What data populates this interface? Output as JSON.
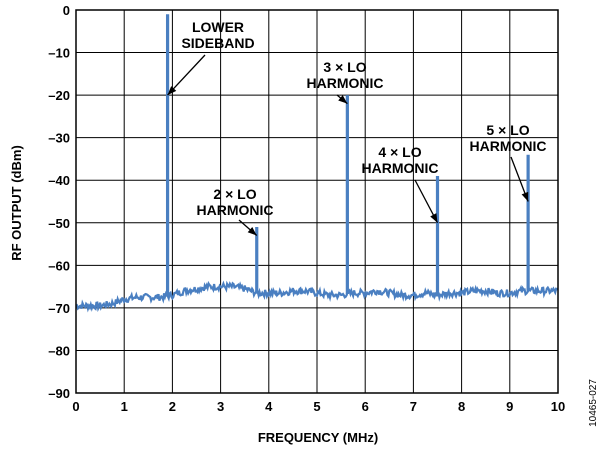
{
  "chart_data": {
    "type": "line",
    "xlabel": "FREQUENCY (MHz)",
    "ylabel": "RF OUTPUT (dBm)",
    "xlim": [
      0,
      10
    ],
    "ylim": [
      -90,
      0
    ],
    "x_ticks": [
      "0",
      "1",
      "2",
      "3",
      "4",
      "5",
      "6",
      "7",
      "8",
      "9",
      "10"
    ],
    "y_ticks": [
      "0",
      "–10",
      "–20",
      "–30",
      "–40",
      "–50",
      "–60",
      "–70",
      "–80",
      "–90"
    ],
    "grid": true,
    "line_color": "#4a7fc1",
    "noise_floor": {
      "x": [
        0,
        0.25,
        0.5,
        0.75,
        1.0,
        1.25,
        1.5,
        1.75,
        2.0,
        2.25,
        2.5,
        2.75,
        3.0,
        3.25,
        3.5,
        3.75,
        4.0,
        4.25,
        4.5,
        4.75,
        5.0,
        5.25,
        5.5,
        5.75,
        6.0,
        6.25,
        6.5,
        6.75,
        7.0,
        7.25,
        7.5,
        7.75,
        8.0,
        8.25,
        8.5,
        8.75,
        9.0,
        9.25,
        9.5,
        9.75,
        10.0
      ],
      "y": [
        -69.5,
        -69.5,
        -69.5,
        -69,
        -68,
        -67.5,
        -67.5,
        -67.5,
        -67,
        -66,
        -65.5,
        -65,
        -65,
        -65,
        -65.5,
        -66.5,
        -66.5,
        -66.5,
        -66,
        -66,
        -66.5,
        -67,
        -67,
        -66.5,
        -66.5,
        -66,
        -66.5,
        -67,
        -67,
        -66.5,
        -67,
        -66.5,
        -66.5,
        -66,
        -66,
        -66.5,
        -66.5,
        -66,
        -66,
        -66,
        -66
      ]
    },
    "peaks": [
      {
        "x": 1.9,
        "y": -1
      },
      {
        "x": 3.75,
        "y": -51
      },
      {
        "x": 5.63,
        "y": -20
      },
      {
        "x": 7.5,
        "y": -39
      },
      {
        "x": 9.38,
        "y": -34
      }
    ],
    "annotations": [
      {
        "lines": [
          "LOWER",
          "SIDEBAND"
        ],
        "target_x": 1.9,
        "target_y": -20
      },
      {
        "lines": [
          "2 × LO",
          "HARMONIC"
        ],
        "target_x": 3.75,
        "target_y": -53
      },
      {
        "lines": [
          "3 × LO",
          "HARMONIC"
        ],
        "target_x": 5.63,
        "target_y": -22
      },
      {
        "lines": [
          "4 × LO",
          "HARMONIC"
        ],
        "target_x": 7.5,
        "target_y": -50
      },
      {
        "lines": [
          "5 × LO",
          "HARMONIC"
        ],
        "target_x": 9.38,
        "target_y": -45
      }
    ],
    "figure_code": "10465-027"
  }
}
